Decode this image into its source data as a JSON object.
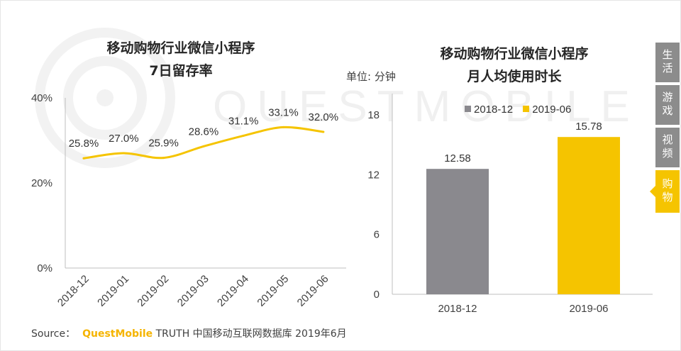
{
  "left_chart": {
    "title_line1": "移动购物行业微信小程序",
    "title_line2": "7日留存率"
  },
  "right_chart": {
    "title_line1": "移动购物行业微信小程序",
    "title_line2": "月人均使用时长",
    "unit_label": "单位: 分钟"
  },
  "watermark": "QUESTMOBILE",
  "side_tabs": [
    {
      "label": "生活",
      "active": false
    },
    {
      "label": "游戏",
      "active": false
    },
    {
      "label": "视频",
      "active": false
    },
    {
      "label": "购物",
      "active": true
    }
  ],
  "source": {
    "prefix": "Source：",
    "brand": "QuestMobile",
    "text": "TRUTH 中国移动互联网数据库 2019年6月"
  },
  "colors": {
    "line": "#f5c400",
    "bar_2018": "#8a898e",
    "bar_2019": "#f5c400"
  },
  "chart_data": [
    {
      "type": "line",
      "title": "移动购物行业微信小程序 7日留存率",
      "categories": [
        "2018-12",
        "2019-01",
        "2019-02",
        "2019-03",
        "2019-04",
        "2019-05",
        "2019-06"
      ],
      "values": [
        25.8,
        27.0,
        25.9,
        28.6,
        31.1,
        33.1,
        32.0
      ],
      "value_labels": [
        "25.8%",
        "27.0%",
        "25.9%",
        "28.6%",
        "31.1%",
        "33.1%",
        "32.0%"
      ],
      "yticks": [
        "0%",
        "20%",
        "40%"
      ],
      "ylim": [
        0,
        40
      ],
      "grid": false
    },
    {
      "type": "bar",
      "title": "移动购物行业微信小程序 月人均使用时长",
      "ylabel": "单位: 分钟",
      "categories": [
        "2018-12",
        "2019-06"
      ],
      "values": [
        12.58,
        15.78
      ],
      "value_labels": [
        "12.58",
        "15.78"
      ],
      "legend": [
        "2018-12",
        "2019-06"
      ],
      "legend_position": "top",
      "yticks": [
        "0",
        "6",
        "12",
        "18"
      ],
      "ylim": [
        0,
        18
      ],
      "grid": false
    }
  ]
}
